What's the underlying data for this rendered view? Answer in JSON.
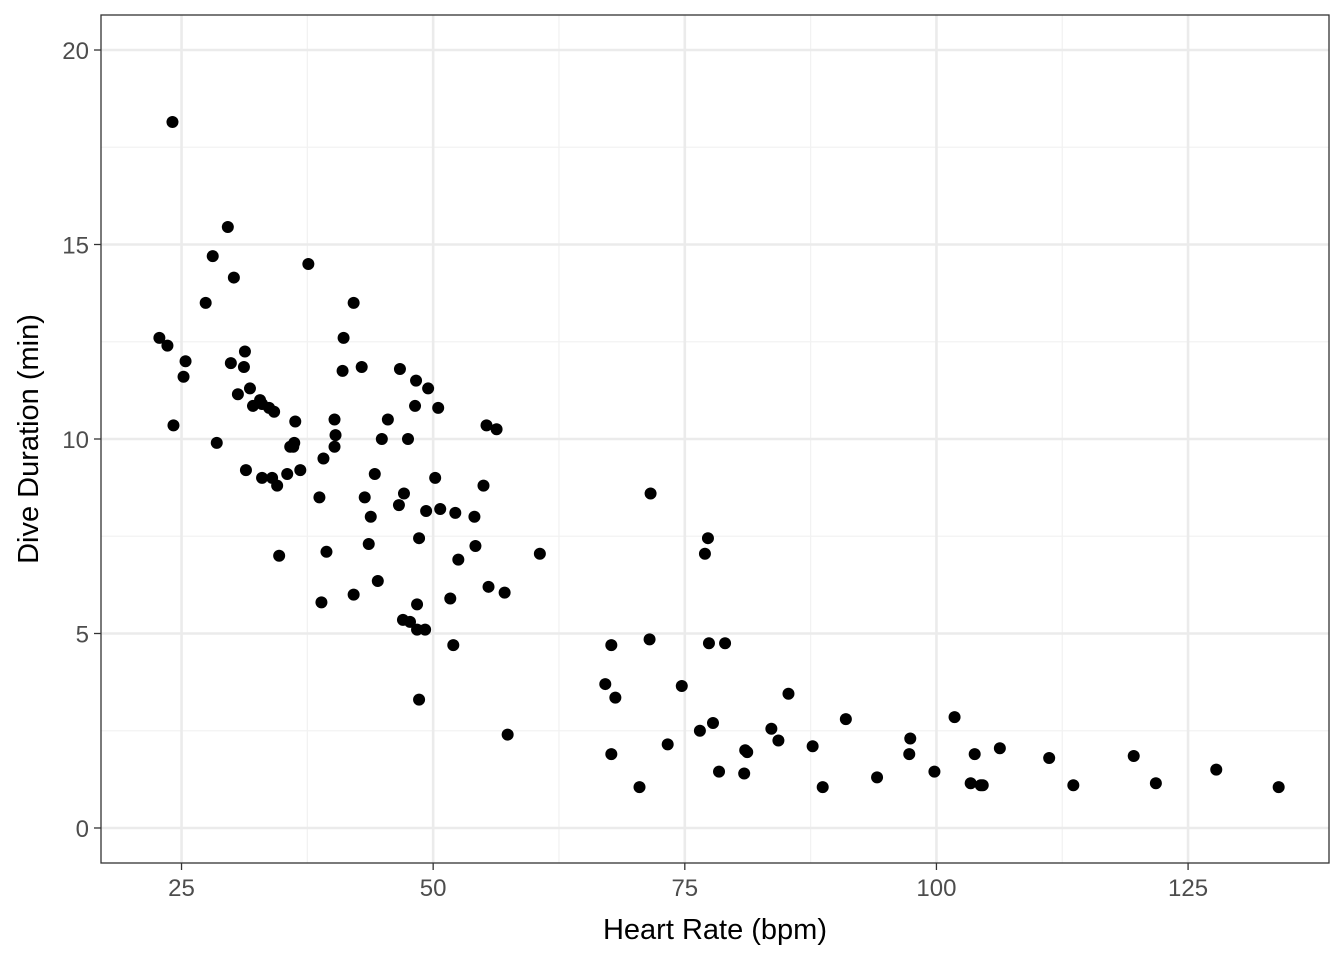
{
  "chart_data": {
    "type": "scatter",
    "title": "",
    "xlabel": "Heart Rate (bpm)",
    "ylabel": "Dive Duration (min)",
    "xlim": [
      17,
      139
    ],
    "ylim": [
      -0.9,
      20.9
    ],
    "x_ticks": [
      25,
      50,
      75,
      100,
      125
    ],
    "x_tick_labels": [
      "25",
      "50",
      "75",
      "100",
      "125"
    ],
    "y_ticks": [
      0,
      5,
      10,
      15,
      20
    ],
    "y_tick_labels": [
      "0",
      "5",
      "10",
      "15",
      "20"
    ],
    "grid": true,
    "legend": "none",
    "colors": {
      "point": "#000000",
      "grid_major": "#ebebeb",
      "grid_minor": "#f2f2f2",
      "panel_border": "#333333",
      "tick_text": "#4d4d4d"
    },
    "series": [
      {
        "x": [
          24.1,
          22.8,
          23.6,
          25.4,
          25.2,
          24.2,
          27.4,
          28.1,
          29.6,
          30.2,
          29.9,
          28.5,
          31.3,
          31.2,
          30.6,
          31.8,
          32.1,
          32.8,
          33.0,
          33.7,
          34.2,
          31.4,
          33.0,
          34.0,
          34.5,
          35.5,
          35.8,
          36.1,
          36.2,
          36.3,
          36.8,
          34.7,
          37.6,
          38.7,
          39.1,
          39.4,
          38.9,
          40.2,
          40.3,
          40.2,
          41.0,
          41.1,
          42.1,
          42.9,
          43.2,
          43.6,
          43.8,
          44.2,
          44.5,
          44.9,
          45.5,
          46.7,
          46.6,
          47.1,
          47.0,
          47.7,
          47.5,
          48.3,
          48.2,
          48.4,
          48.6,
          48.6,
          49.2,
          49.3,
          49.5,
          50.2,
          50.5,
          50.7,
          51.7,
          52.0,
          52.2,
          52.5,
          54.1,
          54.2,
          55.0,
          55.3,
          55.5,
          56.3,
          57.1,
          57.4,
          60.6,
          42.1,
          48.4,
          67.1,
          67.7,
          67.7,
          68.1,
          70.5,
          71.5,
          71.6,
          73.3,
          74.7,
          76.5,
          77.0,
          77.3,
          77.4,
          77.8,
          78.4,
          79.0,
          80.9,
          81.0,
          81.2,
          83.6,
          84.3,
          85.3,
          87.7,
          88.7,
          91.0,
          94.1,
          97.3,
          97.4,
          99.8,
          101.8,
          103.4,
          103.8,
          104.4,
          104.6,
          106.3,
          111.2,
          113.6,
          119.6,
          121.8,
          127.8,
          134.0
        ],
        "y": [
          18.15,
          12.6,
          12.4,
          12.0,
          11.6,
          10.35,
          13.5,
          14.7,
          15.45,
          14.15,
          11.95,
          9.9,
          12.25,
          11.85,
          11.15,
          11.3,
          10.85,
          11.0,
          10.9,
          10.8,
          10.7,
          9.2,
          9.0,
          9.0,
          8.8,
          9.1,
          9.8,
          9.8,
          9.9,
          10.45,
          9.2,
          7.0,
          14.5,
          8.5,
          9.5,
          7.1,
          5.8,
          9.8,
          10.1,
          10.5,
          11.75,
          12.6,
          13.5,
          11.85,
          8.5,
          7.3,
          8.0,
          9.1,
          6.35,
          10.0,
          10.5,
          11.8,
          8.3,
          8.6,
          5.35,
          5.3,
          10.0,
          11.5,
          10.85,
          5.75,
          7.45,
          3.3,
          5.1,
          8.15,
          11.3,
          9.0,
          10.8,
          8.2,
          5.9,
          4.7,
          8.1,
          6.9,
          8.0,
          7.25,
          8.8,
          10.35,
          6.2,
          10.25,
          6.05,
          2.4,
          7.05,
          6.0,
          5.1,
          3.7,
          1.9,
          4.7,
          3.35,
          1.05,
          4.85,
          8.6,
          2.15,
          3.65,
          2.5,
          7.05,
          7.45,
          4.75,
          2.7,
          1.45,
          4.75,
          1.4,
          2.0,
          1.95,
          2.55,
          2.25,
          3.45,
          2.1,
          1.05,
          2.8,
          1.3,
          1.9,
          2.3,
          1.45,
          2.85,
          1.15,
          1.9,
          1.1,
          1.1,
          2.05,
          1.8,
          1.1,
          1.85,
          1.15,
          1.5,
          1.05
        ]
      }
    ]
  }
}
